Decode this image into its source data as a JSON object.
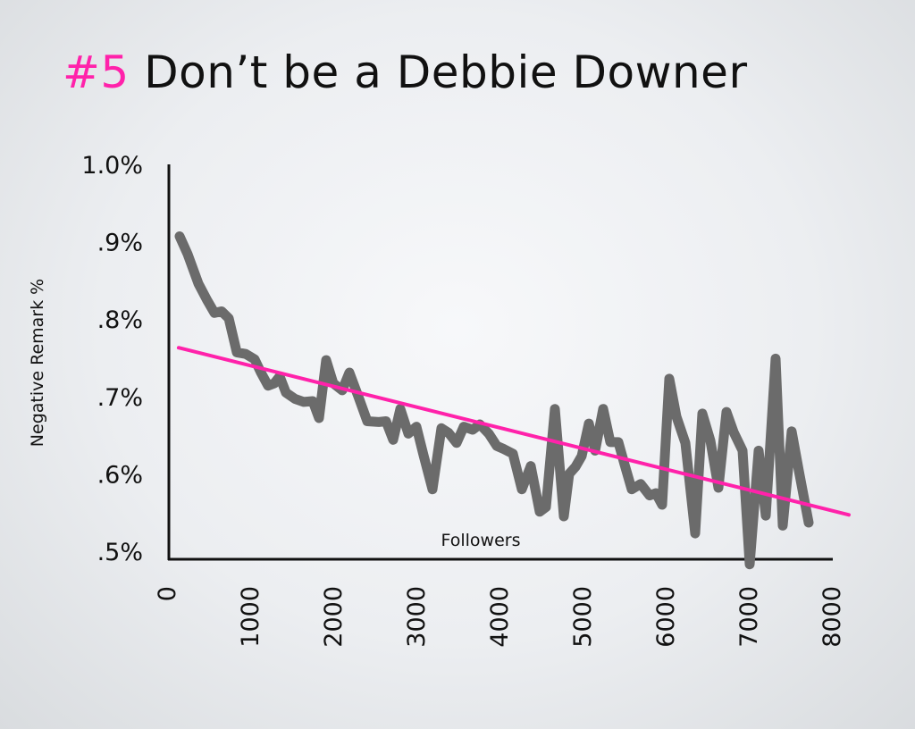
{
  "title": {
    "number": "#5",
    "text": "Don’t be a Debbie Downer"
  },
  "colors": {
    "accent": "#ff22aa",
    "series": "#6b6b6b",
    "axis": "#111111",
    "trend": "#ff22aa"
  },
  "chart_data": {
    "type": "line",
    "title": "#5 Don’t be a Debbie Downer",
    "xlabel": "Followers",
    "ylabel": "Negative Remark %",
    "xlim": [
      0,
      8000
    ],
    "ylim": [
      0.5,
      1.0
    ],
    "x_ticks": [
      "0",
      "1000",
      "2000",
      "3000",
      "4000",
      "5000",
      "6000",
      "7000",
      "8000"
    ],
    "y_ticks": [
      "1.0%",
      ".9%",
      ".8%",
      ".7%",
      ".6%",
      ".5%"
    ],
    "grid": false,
    "legend": null,
    "series": [
      {
        "name": "Negative Remark %",
        "color": "#6b6b6b",
        "x": [
          161,
          258,
          387,
          495,
          581,
          667,
          753,
          849,
          957,
          1065,
          1140,
          1226,
          1301,
          1366,
          1441,
          1548,
          1656,
          1763,
          1839,
          1925,
          2011,
          2118,
          2204,
          2312,
          2419,
          2559,
          2645,
          2731,
          2817,
          2914,
          3011,
          3097,
          3204,
          3312,
          3398,
          3495,
          3581,
          3688,
          3774,
          3882,
          3978,
          4065,
          4172,
          4280,
          4387,
          4495,
          4570,
          4677,
          4785,
          4849,
          4925,
          5000,
          5086,
          5161,
          5258,
          5344,
          5441,
          5516,
          5602,
          5710,
          5817,
          5892,
          5968,
          6054,
          6140,
          6247,
          6366,
          6452,
          6548,
          6645,
          6742,
          6828,
          6935,
          7022,
          7129,
          7215,
          7333,
          7419,
          7527,
          7613,
          7731
        ],
        "y": [
          0.907,
          0.884,
          0.846,
          0.824,
          0.808,
          0.81,
          0.801,
          0.757,
          0.755,
          0.748,
          0.731,
          0.714,
          0.717,
          0.726,
          0.705,
          0.697,
          0.693,
          0.694,
          0.672,
          0.747,
          0.717,
          0.708,
          0.731,
          0.7,
          0.668,
          0.667,
          0.668,
          0.644,
          0.684,
          0.652,
          0.661,
          0.624,
          0.58,
          0.659,
          0.653,
          0.64,
          0.661,
          0.657,
          0.664,
          0.652,
          0.636,
          0.632,
          0.626,
          0.58,
          0.61,
          0.551,
          0.557,
          0.684,
          0.545,
          0.6,
          0.609,
          0.623,
          0.665,
          0.63,
          0.684,
          0.641,
          0.641,
          0.612,
          0.58,
          0.587,
          0.572,
          0.575,
          0.56,
          0.723,
          0.674,
          0.64,
          0.523,
          0.678,
          0.643,
          0.582,
          0.68,
          0.654,
          0.63,
          0.483,
          0.63,
          0.546,
          0.749,
          0.533,
          0.655,
          0.604,
          0.537
        ]
      },
      {
        "name": "Trend",
        "color": "#ff22aa",
        "x": [
          150,
          8215
        ],
        "y": [
          0.763,
          0.547
        ]
      }
    ]
  }
}
